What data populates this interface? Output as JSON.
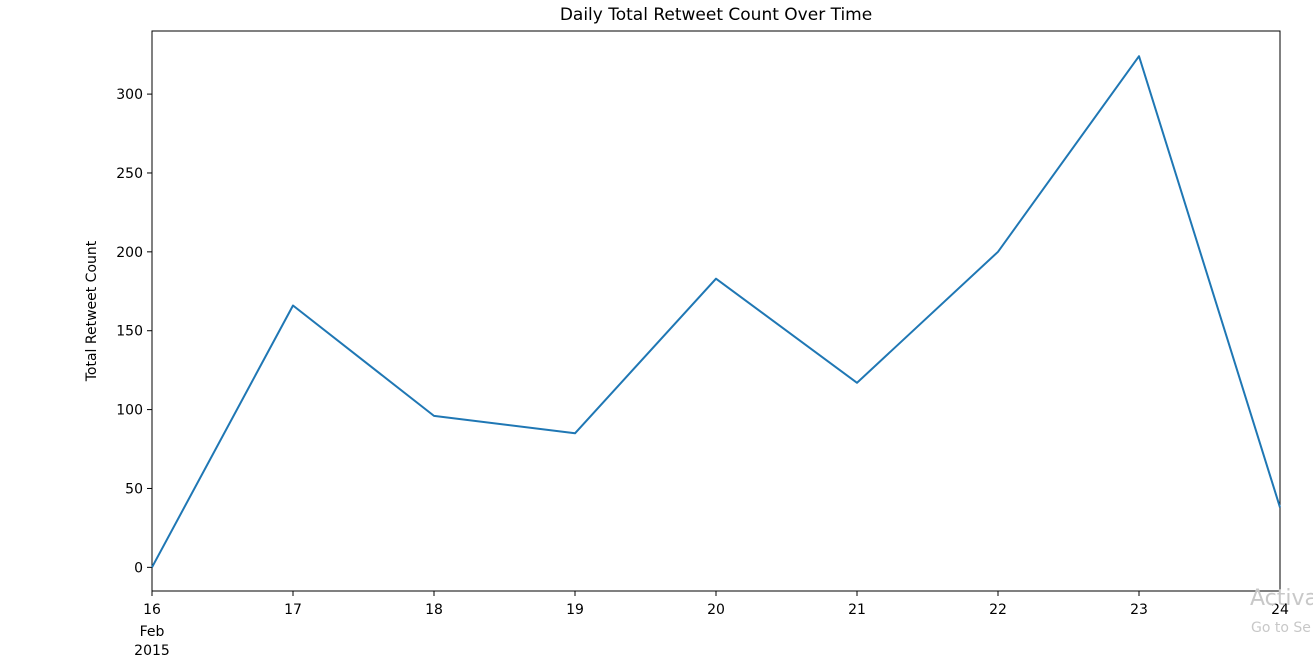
{
  "chart_data": {
    "type": "line",
    "title": "Daily Total Retweet Count Over Time",
    "xlabel": "",
    "ylabel": "Total Retweet Count",
    "x": [
      "2015-02-16",
      "2015-02-17",
      "2015-02-18",
      "2015-02-19",
      "2015-02-20",
      "2015-02-21",
      "2015-02-22",
      "2015-02-23",
      "2015-02-24"
    ],
    "x_tick_labels": [
      "16",
      "17",
      "18",
      "19",
      "20",
      "21",
      "22",
      "23",
      "24"
    ],
    "x_tick_sublabels": [
      "Feb",
      "2015"
    ],
    "series": [
      {
        "values": [
          0,
          166,
          96,
          85,
          183,
          117,
          200,
          324,
          38
        ],
        "color": "#1f77b4"
      }
    ],
    "ylim": [
      -15,
      340
    ],
    "yticks": [
      0,
      50,
      100,
      150,
      200,
      250,
      300
    ],
    "grid": false,
    "legend": "none"
  },
  "watermark": {
    "main": "Activa",
    "sub": "Go to Se"
  }
}
